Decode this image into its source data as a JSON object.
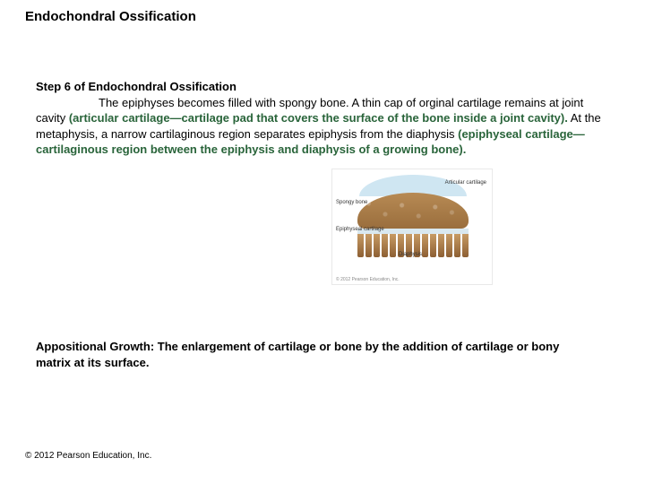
{
  "title": "Endochondral Ossification",
  "step_heading": "Step 6 of Endochondral Ossification",
  "para_seg1_pre_indent": "",
  "para_seg1": "The epiphyses becomes filled with spongy bone.  A thin cap of orginal cartilage remains at joint cavity ",
  "term1": "(articular cartilage—cartilage pad that covers the surface of the bone inside a joint cavity).",
  "para_seg2": "  At the metaphysis, a narrow cartilaginous region separates epiphysis from the diaphysis ",
  "term2": "(epiphyseal cartilage—cartilaginous region between the epiphysis and diaphysis  of a growing bone).",
  "figure": {
    "label_articular": "Articular cartilage",
    "label_spongy": "Spongy\nbone",
    "label_epiphyseal": "Epiphyseal\ncartilage",
    "label_diaphysis": "Diaphysis",
    "fig_copyright": "© 2012 Pearson Education, Inc."
  },
  "appositional": "Appositional Growth:  The enlargement of cartilage or bone by the addition of cartilage or bony matrix at its surface.",
  "copyright": "© 2012 Pearson Education, Inc.",
  "colors": {
    "term_green": "#29643a",
    "background": "#ffffff",
    "text": "#000000"
  }
}
